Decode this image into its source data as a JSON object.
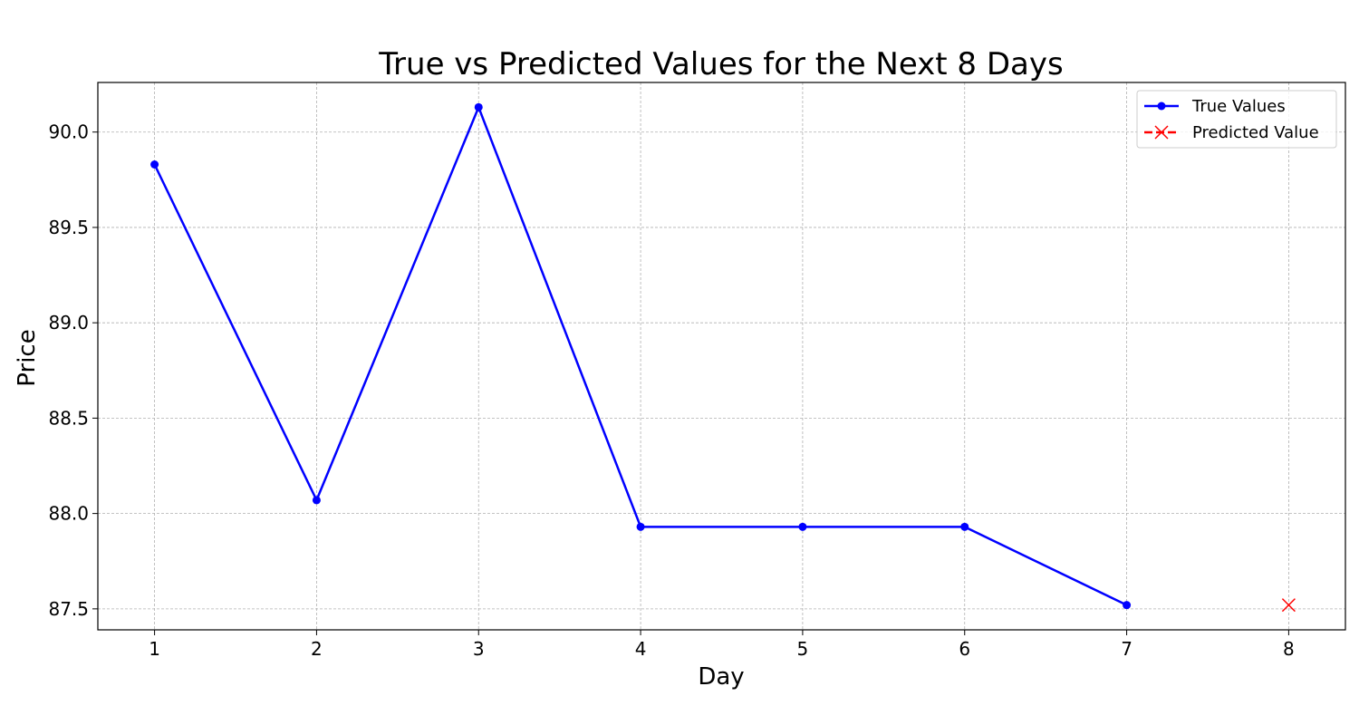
{
  "chart_data": {
    "type": "line",
    "title": "True vs Predicted Values for the Next 8 Days",
    "xlabel": "Day",
    "ylabel": "Price",
    "xlim": [
      0.65,
      8.35
    ],
    "ylim": [
      87.39,
      90.26
    ],
    "xticks": [
      1,
      2,
      3,
      4,
      5,
      6,
      7,
      8
    ],
    "xtick_labels": [
      "1",
      "2",
      "3",
      "4",
      "5",
      "6",
      "7",
      "8"
    ],
    "yticks": [
      87.5,
      88.0,
      88.5,
      89.0,
      89.5,
      90.0
    ],
    "ytick_labels": [
      "87.5",
      "88.0",
      "88.5",
      "89.0",
      "89.5",
      "90.0"
    ],
    "grid": true,
    "legend_position": "top-right",
    "series": [
      {
        "name": "True Values",
        "color": "#0000ff",
        "line": "solid",
        "marker": "circle",
        "x": [
          1,
          2,
          3,
          4,
          5,
          6,
          7
        ],
        "y": [
          89.83,
          88.07,
          90.13,
          87.93,
          87.93,
          87.93,
          87.52
        ]
      },
      {
        "name": "Predicted Value",
        "color": "#ff0000",
        "line": "dashed",
        "marker": "x",
        "x": [
          8
        ],
        "y": [
          87.52
        ]
      }
    ]
  }
}
